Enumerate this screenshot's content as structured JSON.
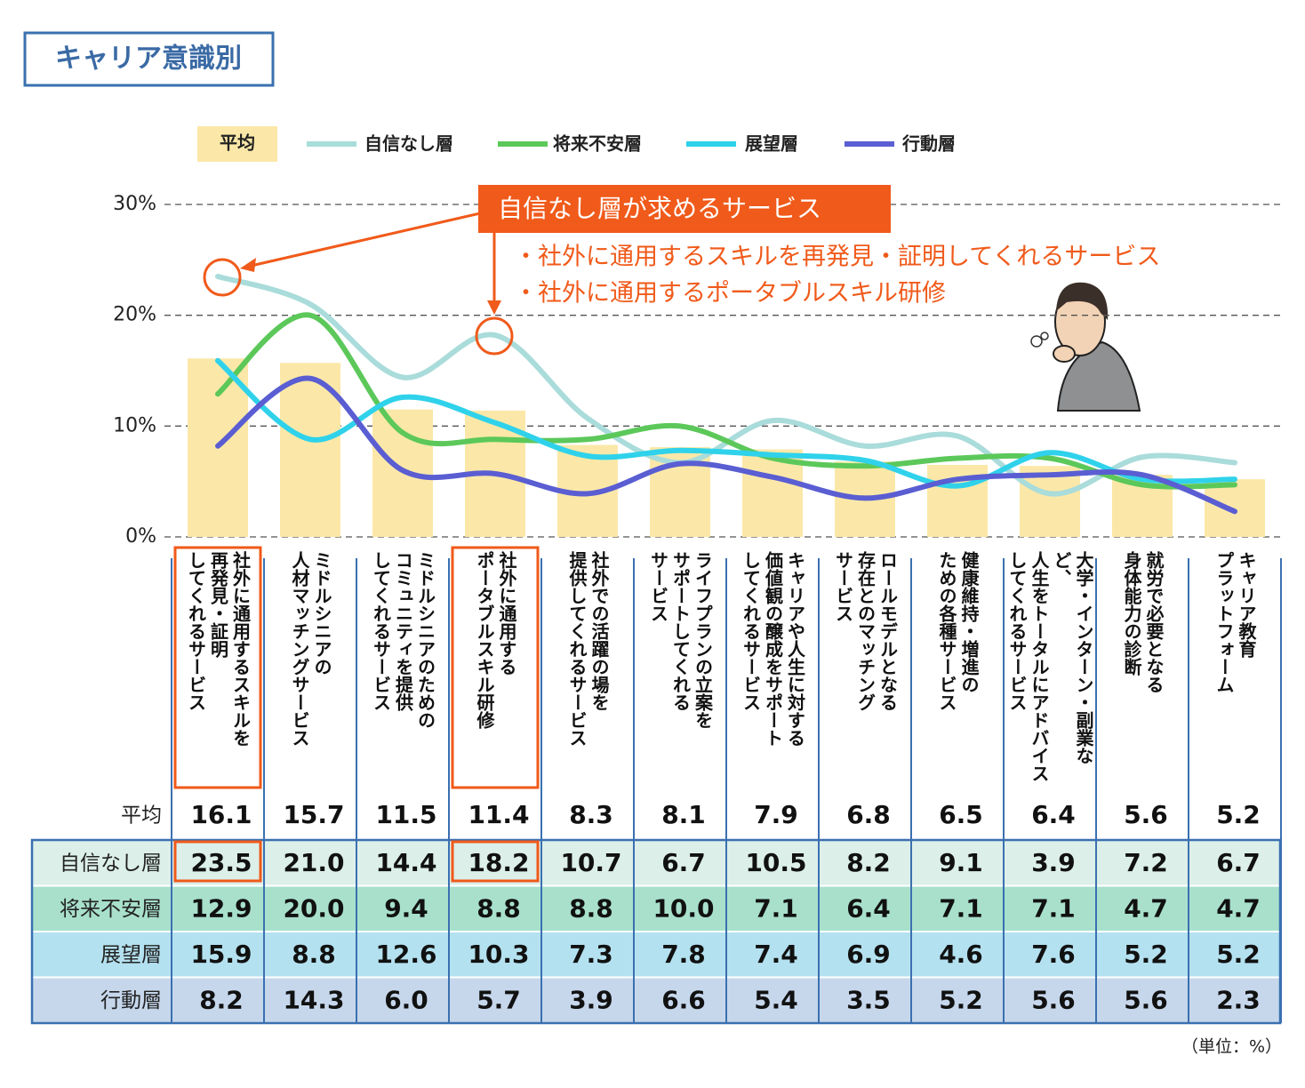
{
  "title": "キャリア意識別",
  "chart_data": {
    "type": "combo",
    "categories": [
      "社外に通用するスキルを\n再発見・証明\nしてくれるサービス",
      "ミドルシニアの\n人材マッチングサービス",
      "ミドルシニアのための\nコミュニティを提供\nしてくれるサービス",
      "社外に通用する\nポータブルスキル研修",
      "社外での活躍の場を\n提供してくれるサービス",
      "ライフプランの立案を\nサポートしてくれる\nサービス",
      "キャリアや人生に対する\n価値観の醸成をサポート\nしてくれるサービス",
      "ロールモデルとなる\n存在とのマッチング\nサービス",
      "健康維持・増進の\nための各種サービス",
      "大学・インターン・副業など、\n人生をトータルにアドバイス\nしてくれるサービス",
      "就労で必要となる\n身体能力の診断",
      "キャリア教育\nプラットフォーム"
    ],
    "series": [
      {
        "name": "平均",
        "type": "bar",
        "color": "#fbe8a8",
        "values": [
          16.1,
          15.7,
          11.5,
          11.4,
          8.3,
          8.1,
          7.9,
          6.8,
          6.5,
          6.4,
          5.6,
          5.2
        ]
      },
      {
        "name": "自信なし層",
        "type": "line",
        "color": "#a9dcda",
        "row_color": "#dcefe9",
        "values": [
          23.5,
          21.0,
          14.4,
          18.2,
          10.7,
          6.7,
          10.5,
          8.2,
          9.1,
          3.9,
          7.2,
          6.7
        ],
        "value_labels": [
          "23.5",
          "21.0",
          "14.4",
          "18.2",
          "10.7",
          "6.7",
          "10.5",
          "8.2",
          "9.1",
          "3.9",
          "7.2",
          "6.7"
        ]
      },
      {
        "name": "将来不安層",
        "type": "line",
        "color": "#5cc85a",
        "row_color": "#a8e0cc",
        "values": [
          12.9,
          20.0,
          9.4,
          8.8,
          8.8,
          10.0,
          7.1,
          6.4,
          7.1,
          7.1,
          4.7,
          4.7
        ],
        "value_labels": [
          "12.9",
          "20.0",
          "9.4",
          "8.8",
          "8.8",
          "10.0",
          "7.1",
          "6.4",
          "7.1",
          "7.1",
          "4.7",
          "4.7"
        ]
      },
      {
        "name": "展望層",
        "type": "line",
        "color": "#2fd2ea",
        "row_color": "#b4e1f0",
        "values": [
          15.9,
          8.8,
          12.6,
          10.3,
          7.3,
          7.8,
          7.4,
          6.9,
          4.6,
          7.6,
          5.2,
          5.2
        ]
      },
      {
        "name": "行動層",
        "type": "line",
        "color": "#5a5ed2",
        "row_color": "#c6d7ec",
        "values": [
          8.2,
          14.3,
          6.0,
          5.7,
          3.9,
          6.6,
          5.4,
          3.5,
          5.2,
          5.6,
          5.6,
          2.3
        ],
        "value_labels": [
          "8.2",
          "14.3",
          "6.0",
          "5.7",
          "3.9",
          "6.6",
          "5.4",
          "3.5",
          "5.2",
          "5.6",
          "5.6",
          "2.3"
        ]
      }
    ],
    "ylim": [
      0,
      30
    ],
    "yticks": [
      {
        "value": 0,
        "label": "0%"
      },
      {
        "value": 10,
        "label": "10%"
      },
      {
        "value": 20,
        "label": "20%"
      },
      {
        "value": 30,
        "label": "30%"
      }
    ],
    "grid": true,
    "annotations": [
      "自信なし層が求めるサービス",
      "・社外に通用するスキルを再発見・証明してくれるサービス",
      "・社外に通用するポータブルスキル研修"
    ],
    "note": "（単位：%）"
  }
}
